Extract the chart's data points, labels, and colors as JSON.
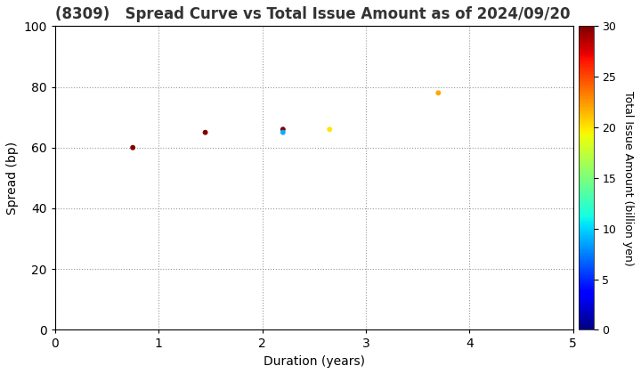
{
  "title": "(8309)   Spread Curve vs Total Issue Amount as of 2024/09/20",
  "xlabel": "Duration (years)",
  "ylabel": "Spread (bp)",
  "colorbar_label": "Total Issue Amount (billion yen)",
  "xlim": [
    0,
    5
  ],
  "ylim": [
    0,
    100
  ],
  "xticks": [
    0,
    1,
    2,
    3,
    4,
    5
  ],
  "yticks": [
    0,
    20,
    40,
    60,
    80,
    100
  ],
  "colorbar_min": 0,
  "colorbar_max": 30,
  "colorbar_ticks": [
    0,
    5,
    10,
    15,
    20,
    25,
    30
  ],
  "points": [
    {
      "duration": 0.75,
      "spread": 60,
      "amount": 30
    },
    {
      "duration": 1.45,
      "spread": 65,
      "amount": 30
    },
    {
      "duration": 2.2,
      "spread": 66,
      "amount": 30
    },
    {
      "duration": 2.2,
      "spread": 65,
      "amount": 9
    },
    {
      "duration": 2.65,
      "spread": 66,
      "amount": 20
    },
    {
      "duration": 3.7,
      "spread": 78,
      "amount": 22
    }
  ],
  "marker_size": 18,
  "background_color": "#ffffff",
  "grid_color": "#999999",
  "grid_linestyle": "dotted",
  "title_fontsize": 12,
  "label_fontsize": 10,
  "tick_fontsize": 10,
  "colorbar_fontsize": 9
}
